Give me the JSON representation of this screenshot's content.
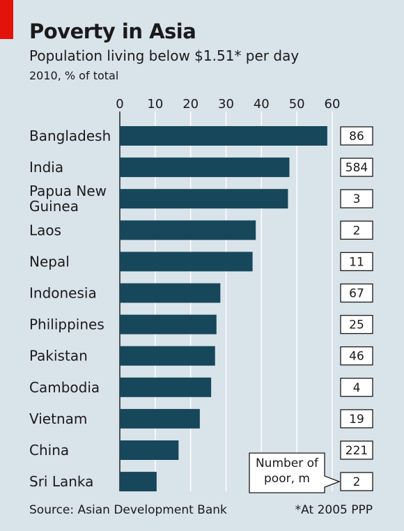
{
  "title": "Poverty in Asia",
  "subtitle": "Population living below $1.51* per day",
  "unit_note": "2010, % of total",
  "source": "Source: Asian Development Bank",
  "footnote": "*At 2005 PPP",
  "colors": {
    "bar": "#17475a",
    "background": "#d9e3ea",
    "accent": "#e3120b",
    "grid": "#ffffff"
  },
  "chart_data": {
    "type": "bar",
    "orientation": "horizontal",
    "categories": [
      "Bangladesh",
      "India",
      "Papua New Guinea",
      "Laos",
      "Nepal",
      "Indonesia",
      "Philippines",
      "Pakistan",
      "Cambodia",
      "Vietnam",
      "China",
      "Sri Lanka"
    ],
    "category_lines": [
      [
        "Bangladesh"
      ],
      [
        "India"
      ],
      [
        "Papua New",
        "Guinea"
      ],
      [
        "Laos"
      ],
      [
        "Nepal"
      ],
      [
        "Indonesia"
      ],
      [
        "Philippines"
      ],
      [
        "Pakistan"
      ],
      [
        "Cambodia"
      ],
      [
        "Vietnam"
      ],
      [
        "China"
      ],
      [
        "Sri Lanka"
      ]
    ],
    "values": [
      58.6,
      47.9,
      47.5,
      38.4,
      37.5,
      28.4,
      27.3,
      26.9,
      25.8,
      22.6,
      16.6,
      10.4
    ],
    "xlim": [
      0,
      60
    ],
    "xticks": [
      0,
      10,
      20,
      30,
      40,
      50,
      60
    ],
    "grid": true,
    "number_of_poor_m": [
      86,
      584,
      3,
      2,
      11,
      67,
      25,
      46,
      4,
      19,
      221,
      2
    ],
    "poor_label_lines": [
      "Number of",
      "poor, m"
    ]
  }
}
